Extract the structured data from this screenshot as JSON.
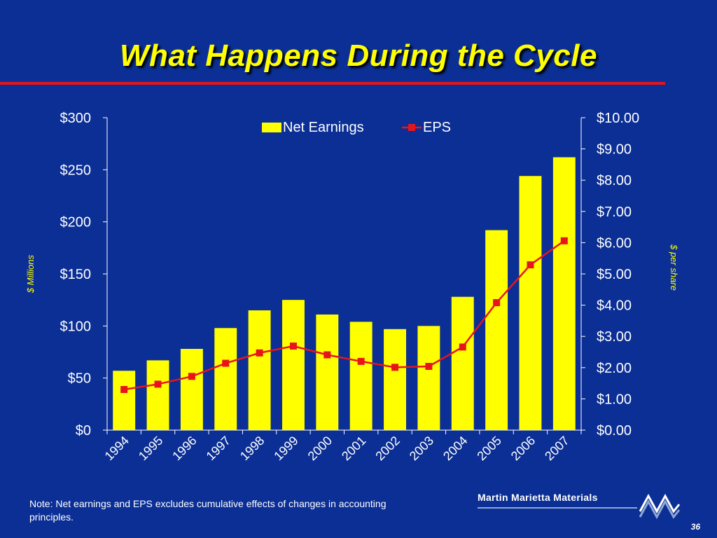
{
  "slide": {
    "title": "What Happens During the Cycle",
    "note": "Note:  Net earnings and EPS excludes cumulative effects of changes in accounting principles.",
    "logo_text": "Martin Marietta Materials",
    "page_number": "36"
  },
  "colors": {
    "background": "#0b2f95",
    "title": "#ffff00",
    "rule": "#e8141b",
    "bar": "#ffff00",
    "line": "#e8141b",
    "axis_text": "#ffffff",
    "axis_title": "#ffff00"
  },
  "chart_data": {
    "type": "bar",
    "title": "",
    "categories": [
      "1994",
      "1995",
      "1996",
      "1997",
      "1998",
      "1999",
      "2000",
      "2001",
      "2002",
      "2003",
      "2004",
      "2005",
      "2006",
      "2007"
    ],
    "series": [
      {
        "name": "Net Earnings",
        "type": "bar",
        "axis": "left",
        "values": [
          57,
          67,
          78,
          98,
          115,
          125,
          111,
          104,
          97,
          100,
          128,
          192,
          244,
          262
        ]
      },
      {
        "name": "EPS",
        "type": "line",
        "axis": "right",
        "values": [
          1.3,
          1.47,
          1.72,
          2.14,
          2.47,
          2.69,
          2.41,
          2.2,
          2.01,
          2.04,
          2.66,
          4.08,
          5.29,
          6.06
        ]
      }
    ],
    "ylabel": "$ Millions",
    "y2label": "$ per share",
    "ylim": [
      0,
      300
    ],
    "y2lim": [
      0,
      10
    ],
    "yticks": [
      "$0",
      "$50",
      "$100",
      "$150",
      "$200",
      "$250",
      "$300"
    ],
    "y2ticks": [
      "$0.00",
      "$1.00",
      "$2.00",
      "$3.00",
      "$4.00",
      "$5.00",
      "$6.00",
      "$7.00",
      "$8.00",
      "$9.00",
      "$10.00"
    ],
    "legend": "top-center",
    "grid": false
  }
}
